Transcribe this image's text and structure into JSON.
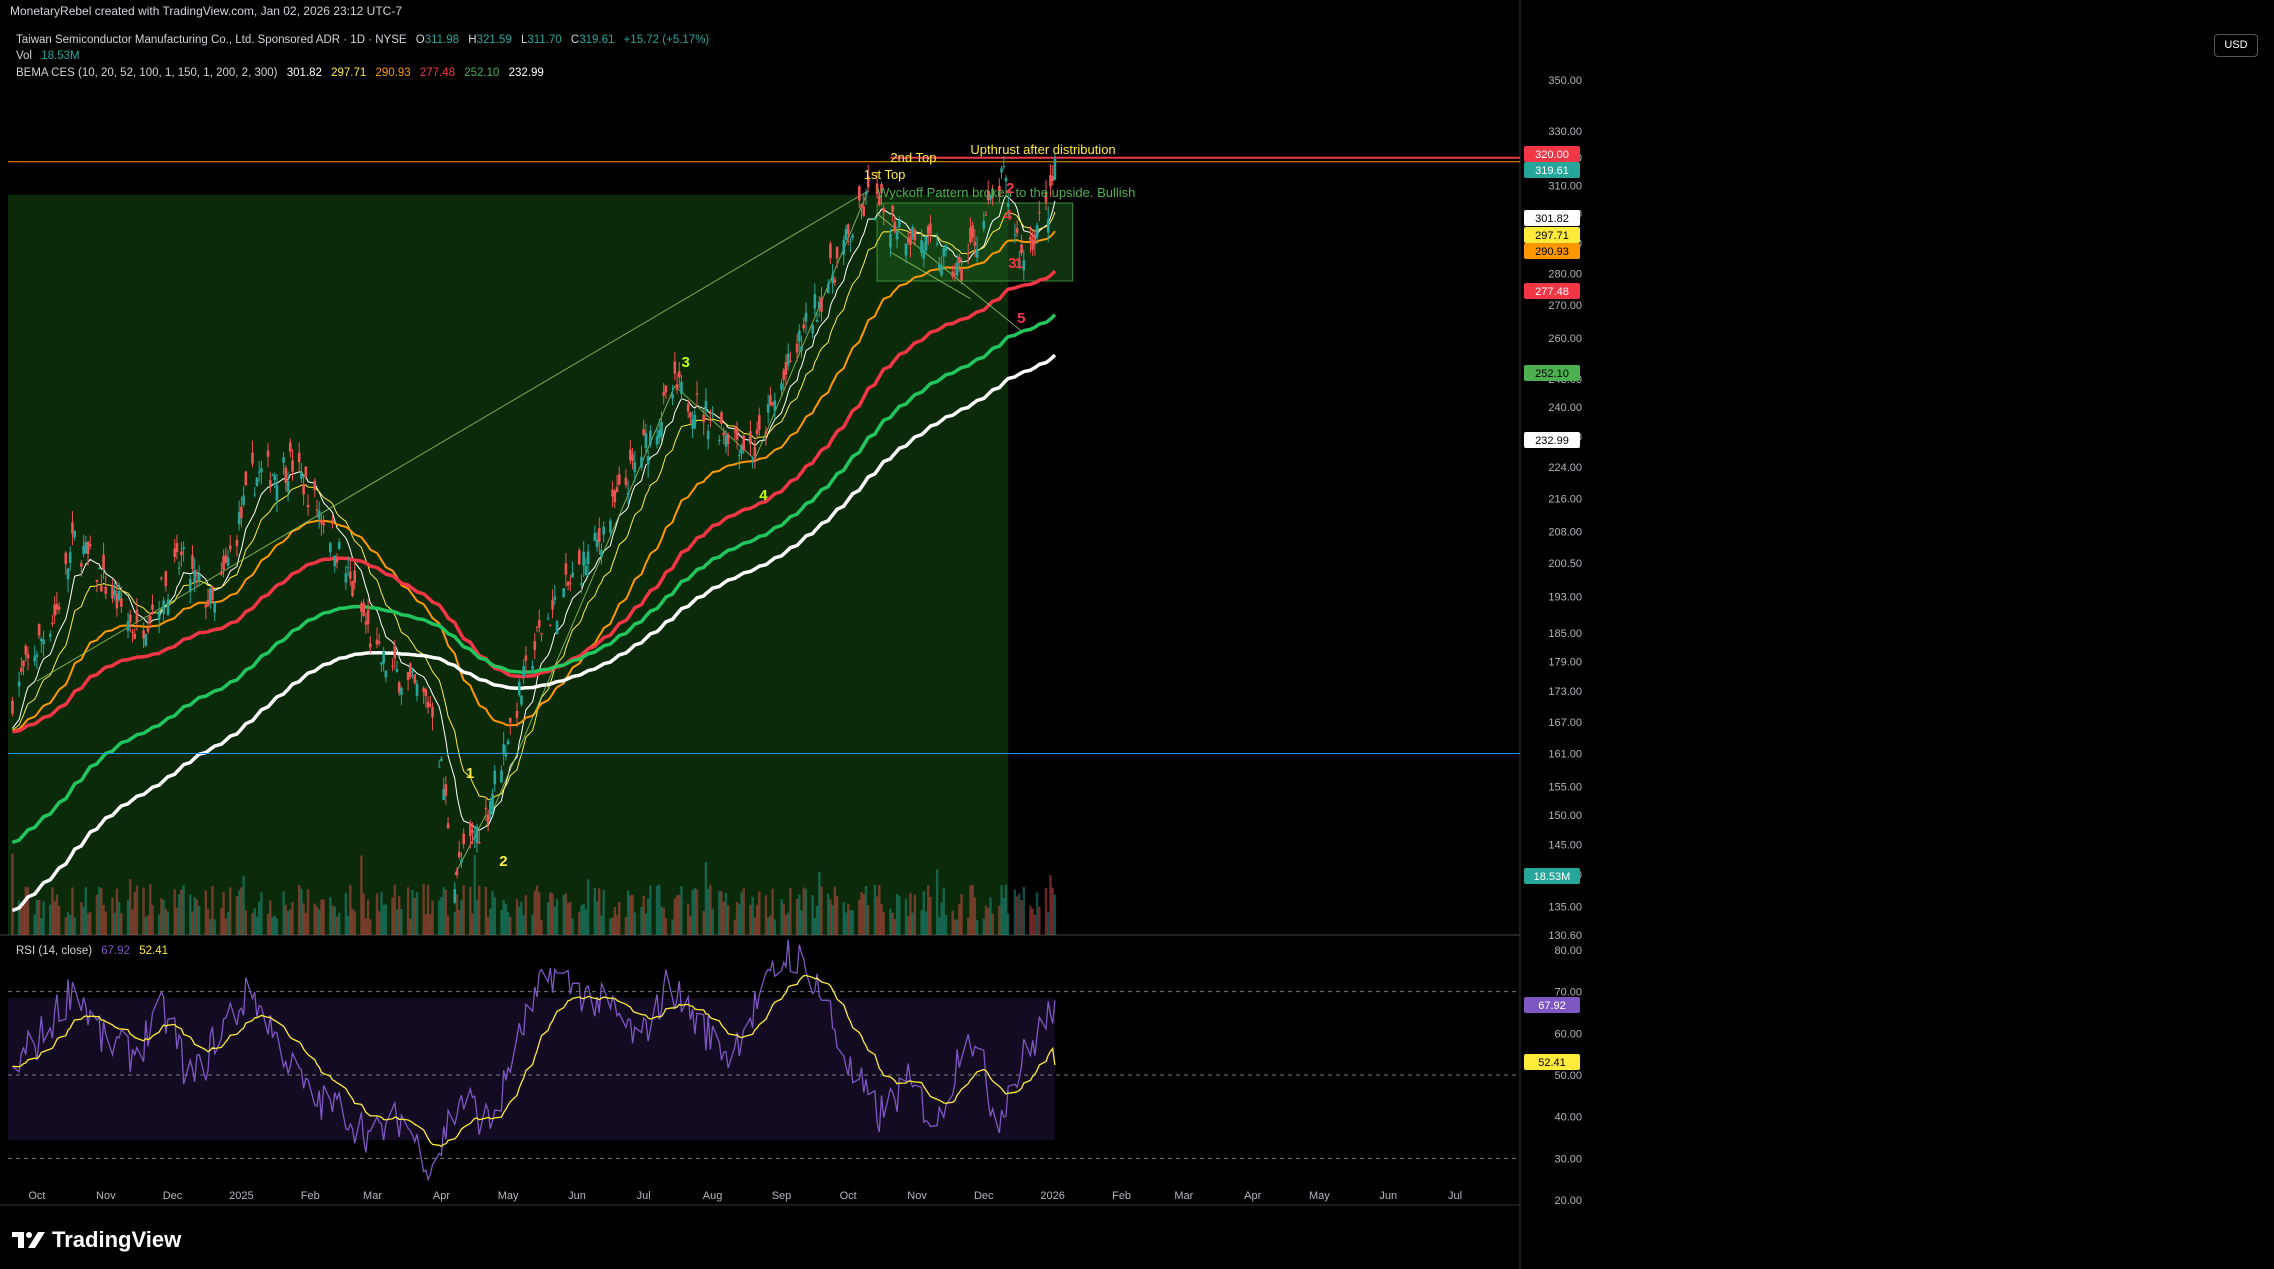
{
  "header": {
    "created_by": "MonetaryRebel created with TradingView.com, Jan 02, 2026 23:12 UTC-7"
  },
  "legend": {
    "symbol_title": "Taiwan Semiconductor Manufacturing Co., Ltd. Sponsored ADR · 1D · NYSE",
    "ohlc": {
      "o_label": "O",
      "o": "311.98",
      "h_label": "H",
      "h": "321.59",
      "l_label": "L",
      "l": "311.70",
      "c_label": "C",
      "c": "319.61",
      "change": "+15.72 (+5.17%)"
    },
    "vol_label": "Vol",
    "vol": "18.53M",
    "bema_label": "BEMA CES (10, 20, 52, 100, 1, 150, 1, 200, 2, 300)",
    "bema_values": [
      "301.82",
      "297.71",
      "290.93",
      "277.48",
      "252.10",
      "232.99"
    ],
    "bema_colors": [
      "#ffffff",
      "#ffeb3b",
      "#ff9800",
      "#f23645",
      "#4caf50",
      "#ffffff"
    ],
    "rsi_label": "RSI (14, close)",
    "rsi_values": [
      "67.92",
      "52.41"
    ],
    "rsi_colors": [
      "#7e57c2",
      "#ffeb3b"
    ]
  },
  "currency_button": "USD",
  "brand": "TradingView",
  "chart_data": [
    {
      "type": "candlestick",
      "title": "Taiwan Semiconductor Manufacturing Co., Ltd. Sponsored ADR · 1D · NYSE",
      "y_scale": "log",
      "ylim": [
        130.6,
        350
      ],
      "price_ticks": [
        "350.00",
        "330.00",
        "320.00",
        "310.00",
        "300.00",
        "290.00",
        "280.00",
        "270.00",
        "260.00",
        "248.00",
        "240.00",
        "232.00",
        "224.00",
        "216.00",
        "208.00",
        "200.50",
        "193.00",
        "185.00",
        "179.00",
        "173.00",
        "167.00",
        "161.00",
        "155.00",
        "150.00",
        "145.00",
        "140.00",
        "135.00",
        "130.60"
      ],
      "x_ticks": [
        "Oct",
        "Nov",
        "Dec",
        "2025",
        "Feb",
        "Mar",
        "Apr",
        "May",
        "Jun",
        "Jul",
        "Aug",
        "Sep",
        "Oct",
        "Nov",
        "Dec",
        "2026",
        "Feb",
        "Mar",
        "Apr",
        "May",
        "Jun",
        "Jul"
      ],
      "price_path_anchors": [
        {
          "date": "2024-09-20",
          "close": 172
        },
        {
          "date": "2024-10-10",
          "close": 190
        },
        {
          "date": "2024-10-18",
          "close": 206
        },
        {
          "date": "2024-11-15",
          "close": 185
        },
        {
          "date": "2024-12-05",
          "close": 201
        },
        {
          "date": "2024-12-20",
          "close": 190
        },
        {
          "date": "2025-01-06",
          "close": 221
        },
        {
          "date": "2025-01-24",
          "close": 225
        },
        {
          "date": "2025-02-10",
          "close": 208
        },
        {
          "date": "2025-03-03",
          "close": 180
        },
        {
          "date": "2025-03-28",
          "close": 170
        },
        {
          "date": "2025-04-07",
          "close": 140
        },
        {
          "date": "2025-04-21",
          "close": 150
        },
        {
          "date": "2025-05-15",
          "close": 185
        },
        {
          "date": "2025-06-10",
          "close": 205
        },
        {
          "date": "2025-07-15",
          "close": 245
        },
        {
          "date": "2025-08-20",
          "close": 228
        },
        {
          "date": "2025-09-30",
          "close": 290
        },
        {
          "date": "2025-10-10",
          "close": 305
        },
        {
          "date": "2025-11-20",
          "close": 280
        },
        {
          "date": "2025-12-10",
          "close": 312
        },
        {
          "date": "2025-12-18",
          "close": 285
        },
        {
          "date": "2025-12-31",
          "close": 304
        },
        {
          "date": "2026-01-02",
          "close": 319.61
        }
      ],
      "last_values": {
        "price": 319.61,
        "ema10": 301.82,
        "ema20": 297.71,
        "ema52": 290.93,
        "ema100": 277.48,
        "ema150": 252.1,
        "ema200": 232.99,
        "volume": "18.53M"
      },
      "price_labels": [
        {
          "text": "320.00",
          "color": "#f23645"
        },
        {
          "text": "319.61",
          "color": "#26a69a"
        },
        {
          "text": "301.82",
          "color": "#ffffff"
        },
        {
          "text": "297.71",
          "color": "#ffeb3b"
        },
        {
          "text": "290.93",
          "color": "#ff9800"
        },
        {
          "text": "277.48",
          "color": "#f23645"
        },
        {
          "text": "252.10",
          "color": "#4caf50"
        },
        {
          "text": "232.99",
          "color": "#ffffff"
        },
        {
          "text": "18.53M",
          "color": "#26a69a"
        }
      ],
      "horizontal_lines": [
        {
          "price": 320.0,
          "color": "#f23645"
        },
        {
          "price": 318.5,
          "color": "#ff9800"
        },
        {
          "price": 161.0,
          "color": "#2196f3"
        }
      ],
      "annotations": [
        {
          "text": "2nd Top",
          "color": "#ffeb3b"
        },
        {
          "text": "1st Top",
          "color": "#ffeb3b"
        },
        {
          "text": "Upthrust after distribution",
          "color": "#ffeb3b"
        },
        {
          "text": "Wyckoff Pattern broken to the upside. Bullish",
          "color": "#4caf50"
        },
        {
          "text": "1",
          "color": "#ffeb3b"
        },
        {
          "text": "2",
          "color": "#ffeb3b"
        },
        {
          "text": "3",
          "color": "#c6ff00"
        },
        {
          "text": "4",
          "color": "#c6ff00"
        },
        {
          "text": "5",
          "color": "#f23645"
        },
        {
          "text": "2",
          "color": "#f23645"
        },
        {
          "text": "4",
          "color": "#f23645"
        },
        {
          "text": "3",
          "color": "#f23645"
        },
        {
          "text": "1",
          "color": "#f23645"
        }
      ]
    },
    {
      "type": "line",
      "title": "RSI (14, close)",
      "ylim": [
        20,
        80
      ],
      "y_ticks": [
        "80.00",
        "70.00",
        "60.00",
        "50.00",
        "40.00",
        "30.00",
        "20.00"
      ],
      "levels": [
        70,
        50,
        30
      ],
      "series": [
        {
          "name": "RSI",
          "color": "#7e57c2",
          "last": 67.92
        },
        {
          "name": "RSI MA",
          "color": "#ffeb3b",
          "last": 52.41
        }
      ],
      "rsi_path_anchors": [
        52,
        60,
        72,
        58,
        55,
        66,
        48,
        62,
        70,
        56,
        44,
        42,
        35,
        40,
        28,
        45,
        38,
        60,
        75,
        70,
        66,
        58,
        72,
        62,
        55,
        68,
        80,
        72,
        52,
        40,
        48,
        38,
        62,
        40,
        55,
        67.92
      ]
    }
  ]
}
